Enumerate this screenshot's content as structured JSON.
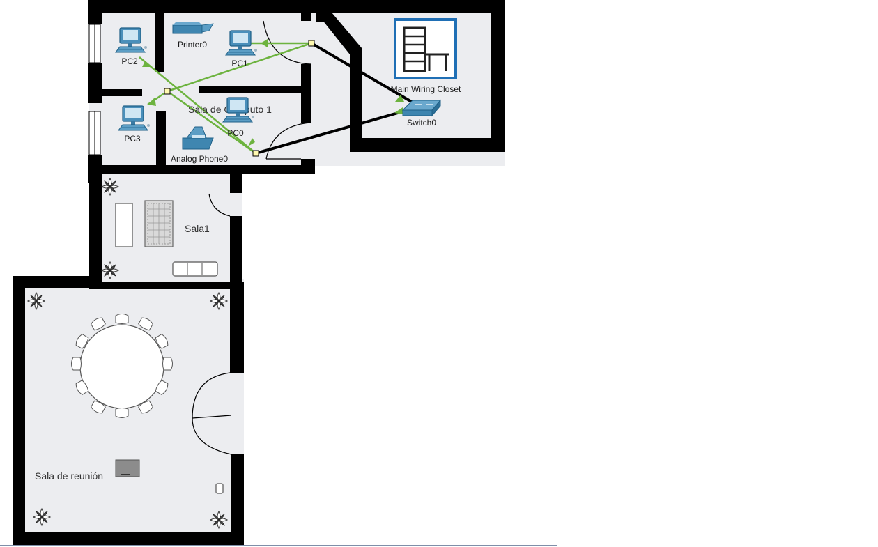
{
  "colors": {
    "wall": "#000000",
    "floor": "#ecedf0",
    "wireless": "#6db33f",
    "cable": "#000000",
    "device_blue": "#2e7ea8",
    "closet_blue": "#1f6fb5"
  },
  "rooms": {
    "computer_room": "Sala de Computo 1",
    "sala1": "Sala1",
    "meeting": "Sala de reunión",
    "wiring_closet": "Main Wiring Closet"
  },
  "devices": {
    "pc0": "PC0",
    "pc1": "PC1",
    "pc2": "PC2",
    "pc3": "PC3",
    "printer": "Printer0",
    "phone": "Analog Phone0",
    "switch": "Switch0"
  },
  "icons": {
    "pc": "desktop-pc-icon",
    "printer": "printer-icon",
    "phone": "analog-phone-icon",
    "switch": "switch-icon",
    "rack": "wiring-rack-icon",
    "plant": "plant-icon",
    "chair": "chair-icon",
    "sofa": "sofa-icon",
    "rug": "rug-icon",
    "projector": "projector-icon",
    "outlet": "wall-outlet-icon"
  }
}
